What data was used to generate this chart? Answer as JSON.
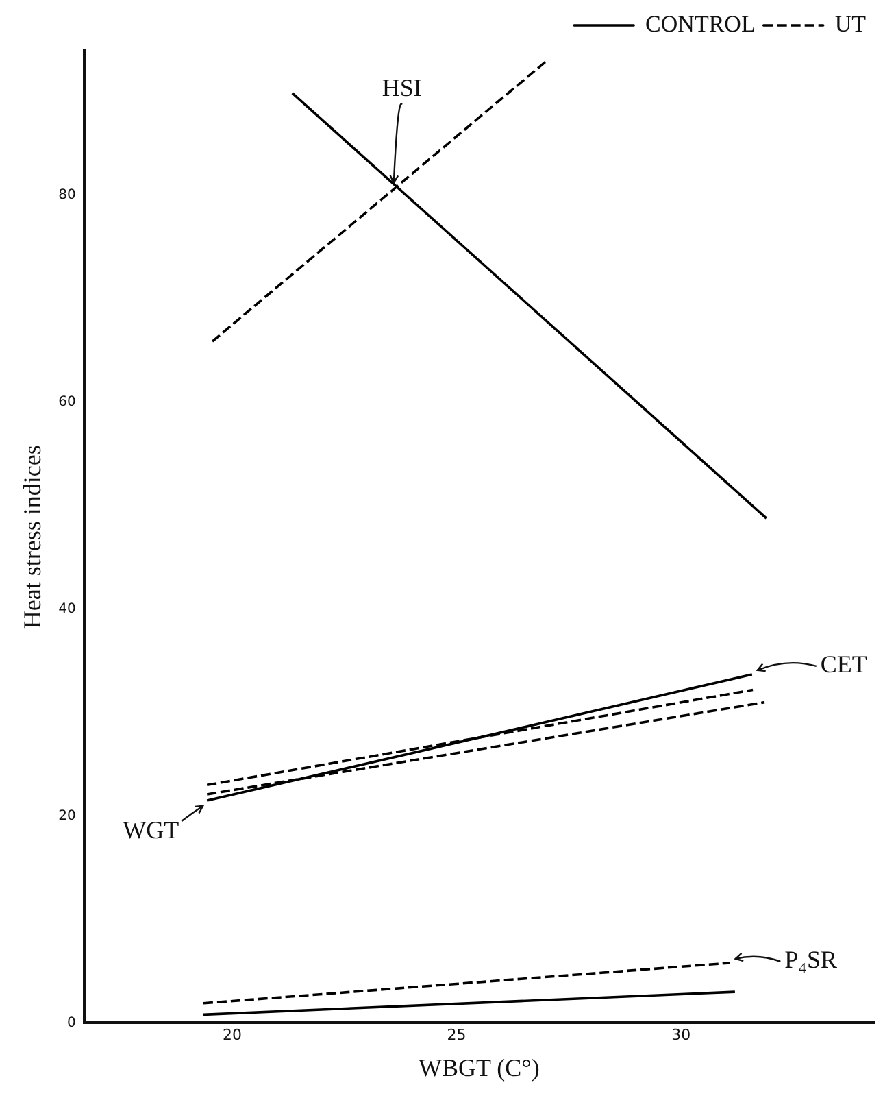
{
  "chart_data": {
    "type": "line",
    "xlabel": "WBGT (C°)",
    "ylabel": "Heat stress indices",
    "xlim": [
      16.7,
      34.3
    ],
    "xticks": [
      20,
      25,
      30
    ],
    "ylim": [
      0,
      94
    ],
    "yticks": [
      0,
      20,
      40,
      60,
      80
    ],
    "grid": false,
    "legend": "top right",
    "marker": "none",
    "series": [
      {
        "name": "CONTROL",
        "color": "#000000",
        "line_style": "solid",
        "x": [
          21.34,
          31.9
        ],
        "values": [
          89.9,
          48.8
        ]
      },
      {
        "name": "UT",
        "color": "#000000",
        "line_style": "dashed",
        "x": [
          19.56,
          27.0
        ],
        "values": [
          65.9,
          93.0
        ]
      },
      {
        "color": "#000000",
        "line_style": "solid",
        "x": [
          19.44,
          31.58
        ],
        "values": [
          21.5,
          33.7
        ]
      },
      {
        "color": "#000000",
        "line_style": "dashed",
        "x": [
          19.44,
          31.6
        ],
        "values": [
          23.0,
          32.2
        ]
      },
      {
        "color": "#000000",
        "line_style": "dashed",
        "x": [
          19.44,
          31.86
        ],
        "values": [
          22.1,
          31.0
        ]
      },
      {
        "color": "#000000",
        "line_style": "dashed",
        "x": [
          19.36,
          31.09
        ],
        "values": [
          1.9,
          5.8
        ]
      },
      {
        "color": "#000000",
        "line_style": "solid",
        "x": [
          19.36,
          31.2
        ],
        "values": [
          0.8,
          3.0
        ]
      }
    ],
    "annotations": [
      {
        "text": "HSI",
        "x": 23.6,
        "y": 81.1
      },
      {
        "text": "CET",
        "x": 31.58,
        "y": 33.7
      },
      {
        "text": "WGT",
        "x": 19.44,
        "y": 21.5
      },
      {
        "text": "P₄SR",
        "x": 31.09,
        "y": 5.8
      }
    ]
  }
}
